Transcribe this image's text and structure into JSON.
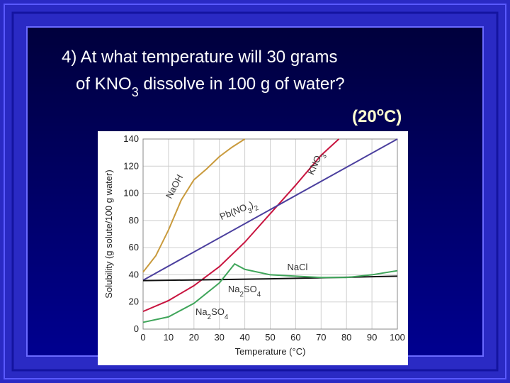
{
  "slide": {
    "question": [
      [
        {
          "text": "4) At what temperature will 30 grams"
        }
      ],
      [
        {
          "text": "of KNO"
        },
        {
          "text": "3",
          "shift": "sub"
        },
        {
          "text": " dissolve in 100 g of water?"
        }
      ]
    ],
    "answer": [
      {
        "text": "(20"
      },
      {
        "text": "o",
        "shift": "super"
      },
      {
        "text": "C)"
      }
    ]
  },
  "chart_data": {
    "type": "line",
    "x_label": "Temperature (°C)",
    "y_label": "Solubility (g solute/100 g water)",
    "xlim": [
      0,
      100
    ],
    "xticks": [
      0,
      10,
      20,
      30,
      40,
      50,
      60,
      70,
      80,
      90,
      100
    ],
    "ylim": [
      0,
      140
    ],
    "yticks": [
      0,
      20,
      40,
      60,
      80,
      100,
      120,
      140
    ],
    "grid": true,
    "series": [
      {
        "label": [
          {
            "text": "NaOH"
          }
        ],
        "color": "#c99a3c",
        "x": [
          0,
          5,
          10,
          15,
          20,
          25,
          30,
          35,
          40
        ],
        "values": [
          42,
          54,
          73,
          95,
          110,
          118,
          127,
          134,
          140
        ]
      },
      {
        "label": [
          {
            "text": "KNO"
          },
          {
            "text": "3",
            "shift": "sub"
          }
        ],
        "color": "#c8143f",
        "x": [
          0,
          10,
          20,
          30,
          40,
          50,
          60,
          70,
          77
        ],
        "values": [
          13,
          21,
          32,
          46,
          64,
          85,
          106,
          128,
          140
        ]
      },
      {
        "label": [
          {
            "text": "Pb(NO"
          },
          {
            "text": "3",
            "shift": "sub"
          },
          {
            "text": ")"
          },
          {
            "text": "2",
            "shift": "sub"
          }
        ],
        "color": "#4b3f9e",
        "x": [
          0,
          100
        ],
        "values": [
          36,
          140
        ]
      },
      {
        "label": [
          {
            "text": "NaCl"
          }
        ],
        "color": "#111111",
        "x": [
          0,
          50,
          100
        ],
        "values": [
          35.7,
          37,
          39
        ]
      },
      {
        "label": [
          {
            "text": "Na"
          },
          {
            "text": "2",
            "shift": "sub"
          },
          {
            "text": "SO"
          },
          {
            "text": "4",
            "shift": "sub"
          }
        ],
        "color": "#3fa55a",
        "x": [
          0,
          10,
          20,
          30,
          36,
          40,
          50,
          60,
          70,
          80,
          90,
          100
        ],
        "values": [
          5,
          9,
          19,
          34,
          48,
          44,
          40,
          39,
          38,
          38,
          40,
          43
        ]
      }
    ],
    "extra_label": [
      {
        "text": "Na"
      },
      {
        "text": "2",
        "shift": "sub"
      },
      {
        "text": "SO"
      },
      {
        "text": "4",
        "shift": "sub"
      }
    ]
  }
}
